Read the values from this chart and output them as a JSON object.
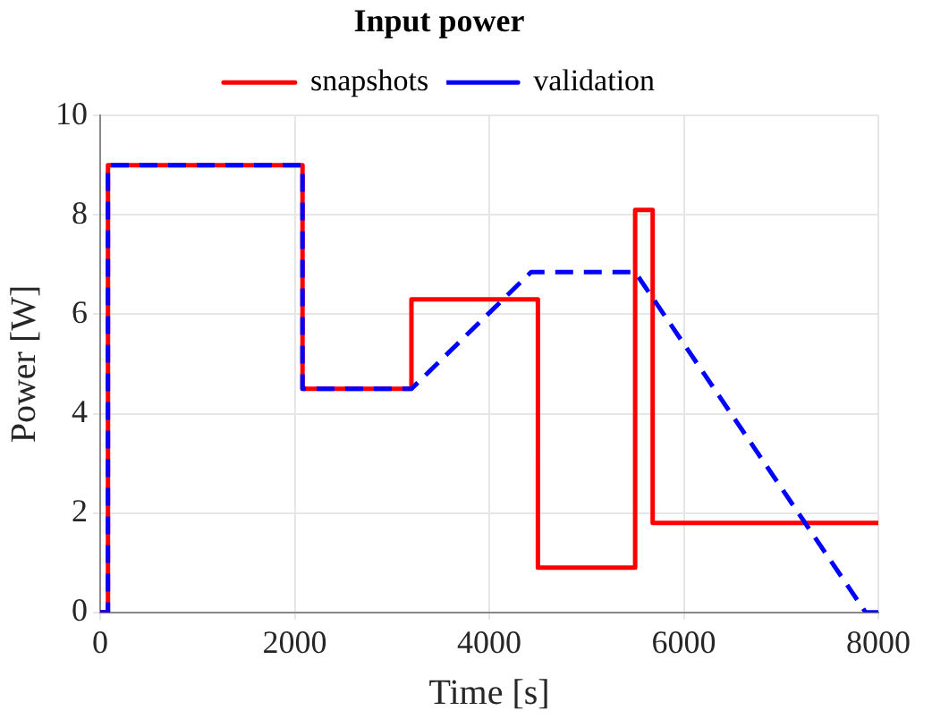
{
  "chart_data": {
    "type": "line",
    "title": "Input power",
    "xlabel": "Time [s]",
    "ylabel": "Power [W]",
    "xlim": [
      0,
      8000
    ],
    "xticks": [
      0,
      2000,
      4000,
      6000,
      8000
    ],
    "ylim": [
      0,
      10
    ],
    "yticks": [
      0,
      2,
      4,
      6,
      8,
      10
    ],
    "grid": true,
    "legend": "top",
    "marker": "none",
    "series": [
      {
        "name": "snapshots",
        "color": "#ff0000",
        "line_style": "solid",
        "x": [
          0,
          80,
          80,
          2080,
          2080,
          3200,
          3200,
          4500,
          4500,
          5500,
          5500,
          5680,
          5680,
          8000
        ],
        "values": [
          0,
          0,
          9,
          9,
          4.5,
          4.5,
          6.3,
          6.3,
          0.9,
          0.9,
          8.1,
          8.1,
          1.8,
          1.8
        ]
      },
      {
        "name": "validation",
        "color": "#0000ff",
        "line_style": "dashed",
        "x": [
          0,
          80,
          80,
          2080,
          2080,
          3200,
          4430,
          5500,
          7870,
          8000
        ],
        "values": [
          0,
          0,
          9,
          9,
          4.5,
          4.5,
          6.85,
          6.85,
          0,
          0
        ]
      }
    ]
  }
}
